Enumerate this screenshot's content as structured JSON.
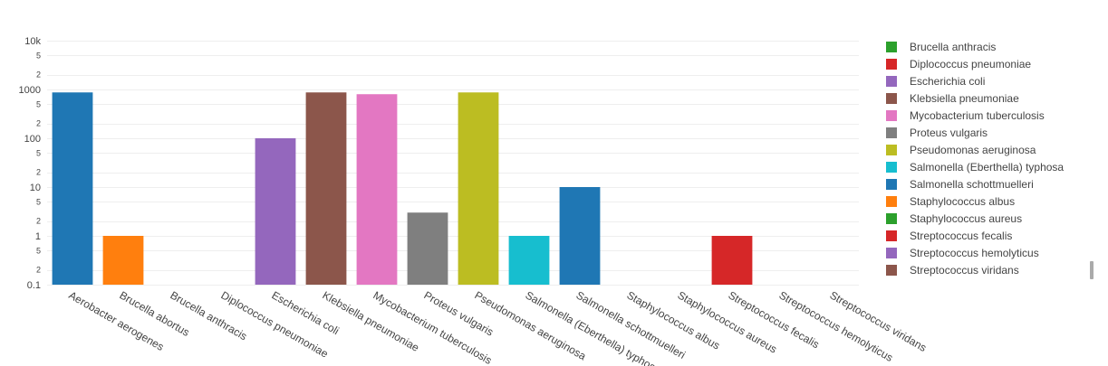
{
  "chart_data": {
    "type": "bar",
    "yscale": "log",
    "ylim": [
      0.1,
      10000
    ],
    "grid": true,
    "legend_position": "right",
    "categories": [
      "Aerobacter aerogenes",
      "Brucella abortus",
      "Brucella anthracis",
      "Diplococcus pneumoniae",
      "Escherichia coli",
      "Klebsiella pneumoniae",
      "Mycobacterium tuberculosis",
      "Proteus vulgaris",
      "Pseudomonas aeruginosa",
      "Salmonella (Eberthella) typhosa",
      "Salmonella schottmuelleri",
      "Staphylococcus albus",
      "Staphylococcus aureus",
      "Streptococcus fecalis",
      "Streptococcus hemolyticus",
      "Streptococcus viridans"
    ],
    "values": [
      870,
      1,
      null,
      null,
      100,
      870,
      800,
      3,
      870,
      1,
      10,
      null,
      null,
      1,
      null,
      null
    ],
    "bar_colors": [
      "#1f77b4",
      "#ff7f0e",
      "#2ca02c",
      "#d62728",
      "#9467bd",
      "#8c564b",
      "#e377c2",
      "#7f7f7f",
      "#bcbd22",
      "#17becf",
      "#1f77b4",
      "#ff7f0e",
      "#2ca02c",
      "#d62728",
      "#9467bd",
      "#8c564b"
    ],
    "y_major_ticks": [
      {
        "value": 0.1,
        "label": "0.1"
      },
      {
        "value": 1,
        "label": "1"
      },
      {
        "value": 10,
        "label": "10"
      },
      {
        "value": 100,
        "label": "100"
      },
      {
        "value": 1000,
        "label": "1000"
      },
      {
        "value": 10000,
        "label": "10k"
      }
    ],
    "y_minor_ticks": [
      {
        "value": 0.2,
        "label": "2"
      },
      {
        "value": 0.5,
        "label": "5"
      },
      {
        "value": 2,
        "label": "2"
      },
      {
        "value": 5,
        "label": "5"
      },
      {
        "value": 20,
        "label": "2"
      },
      {
        "value": 50,
        "label": "5"
      },
      {
        "value": 200,
        "label": "2"
      },
      {
        "value": 500,
        "label": "5"
      },
      {
        "value": 2000,
        "label": "2"
      },
      {
        "value": 5000,
        "label": "5"
      }
    ],
    "legend": [
      {
        "name": "Brucella anthracis",
        "color": "#2ca02c"
      },
      {
        "name": "Diplococcus pneumoniae",
        "color": "#d62728"
      },
      {
        "name": "Escherichia coli",
        "color": "#9467bd"
      },
      {
        "name": "Klebsiella pneumoniae",
        "color": "#8c564b"
      },
      {
        "name": "Mycobacterium tuberculosis",
        "color": "#e377c2"
      },
      {
        "name": "Proteus vulgaris",
        "color": "#7f7f7f"
      },
      {
        "name": "Pseudomonas aeruginosa",
        "color": "#bcbd22"
      },
      {
        "name": "Salmonella (Eberthella) typhosa",
        "color": "#17becf"
      },
      {
        "name": "Salmonella schottmuelleri",
        "color": "#1f77b4"
      },
      {
        "name": "Staphylococcus albus",
        "color": "#ff7f0e"
      },
      {
        "name": "Staphylococcus aureus",
        "color": "#2ca02c"
      },
      {
        "name": "Streptococcus fecalis",
        "color": "#d62728"
      },
      {
        "name": "Streptococcus hemolyticus",
        "color": "#9467bd"
      },
      {
        "name": "Streptococcus viridans",
        "color": "#8c564b"
      }
    ]
  }
}
